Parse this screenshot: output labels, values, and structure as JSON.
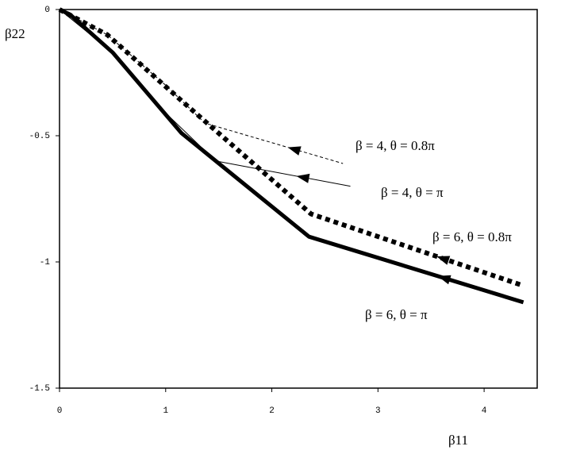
{
  "chart_data": {
    "type": "line",
    "x_label": "β11",
    "y_label": "β22",
    "xlim": [
      0,
      4.5
    ],
    "ylim": [
      -1.5,
      0
    ],
    "xticks": [
      0,
      1,
      2,
      3,
      4
    ],
    "yticks": [
      -1.5,
      -1,
      -0.5,
      0
    ],
    "series": [
      {
        "name": "β = 4, θ = 0.8π",
        "color": "#000000",
        "style": "dashed",
        "width": 1,
        "x": [
          0,
          0.45,
          1.0,
          1.37,
          2.67
        ],
        "values": [
          0,
          -0.1,
          -0.3,
          -0.45,
          -0.61
        ]
      },
      {
        "name": "β = 4, θ = π",
        "color": "#000000",
        "style": "solid",
        "width": 1,
        "x": [
          0,
          0.5,
          1.0,
          1.47,
          2.74
        ],
        "values": [
          0,
          -0.17,
          -0.41,
          -0.6,
          -0.7
        ]
      },
      {
        "name": "β = 6, θ = 0.8π",
        "color": "#000000",
        "style": "dotted",
        "width": 6,
        "x": [
          0,
          0.45,
          1.2,
          2.37,
          4.34
        ],
        "values": [
          0,
          -0.1,
          -0.38,
          -0.81,
          -1.09
        ]
      },
      {
        "name": "β = 6, θ = π",
        "color": "#000000",
        "style": "solid",
        "width": 5,
        "x": [
          0,
          0.1,
          0.5,
          1.15,
          2.35,
          4.37
        ],
        "values": [
          0,
          -0.02,
          -0.17,
          -0.49,
          -0.9,
          -1.16
        ]
      }
    ]
  }
}
